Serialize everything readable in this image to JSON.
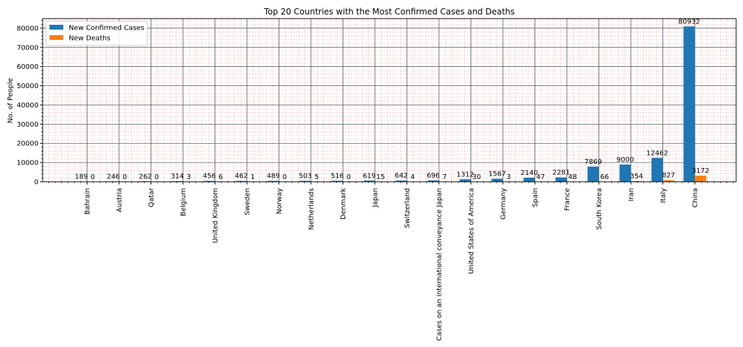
{
  "chart_data": {
    "type": "bar",
    "title": "Top 20 Countries with the Most Confirmed Cases and Deaths",
    "xlabel": "",
    "ylabel": "No. of People",
    "ylim": [
      0,
      85000
    ],
    "yticks": [
      0,
      10000,
      20000,
      30000,
      40000,
      50000,
      60000,
      70000,
      80000
    ],
    "grid": "major dark, minor red dashed",
    "legend_position": "top-left",
    "categories": [
      "Bahrain",
      "Austria",
      "Qatar",
      "Belgium",
      "United Kingdom",
      "Sweden",
      "Norway",
      "Netherlands",
      "Denmark",
      "Japan",
      "Switzerland",
      "Cases on an international conveyance Japan",
      "United States of America",
      "Germany",
      "Spain",
      "France",
      "South Korea",
      "Iran",
      "Italy",
      "China"
    ],
    "series": [
      {
        "name": "New Confirmed Cases",
        "color": "#1f77b4",
        "values": [
          189,
          246,
          262,
          314,
          456,
          462,
          489,
          503,
          516,
          619,
          642,
          696,
          1312,
          1567,
          2140,
          2281,
          7869,
          9000,
          12462,
          80932
        ]
      },
      {
        "name": "New Deaths",
        "color": "#ff7f0e",
        "values": [
          0,
          0,
          0,
          3,
          6,
          1,
          0,
          5,
          0,
          15,
          4,
          7,
          30,
          3,
          47,
          48,
          66,
          354,
          827,
          3172
        ]
      }
    ]
  }
}
